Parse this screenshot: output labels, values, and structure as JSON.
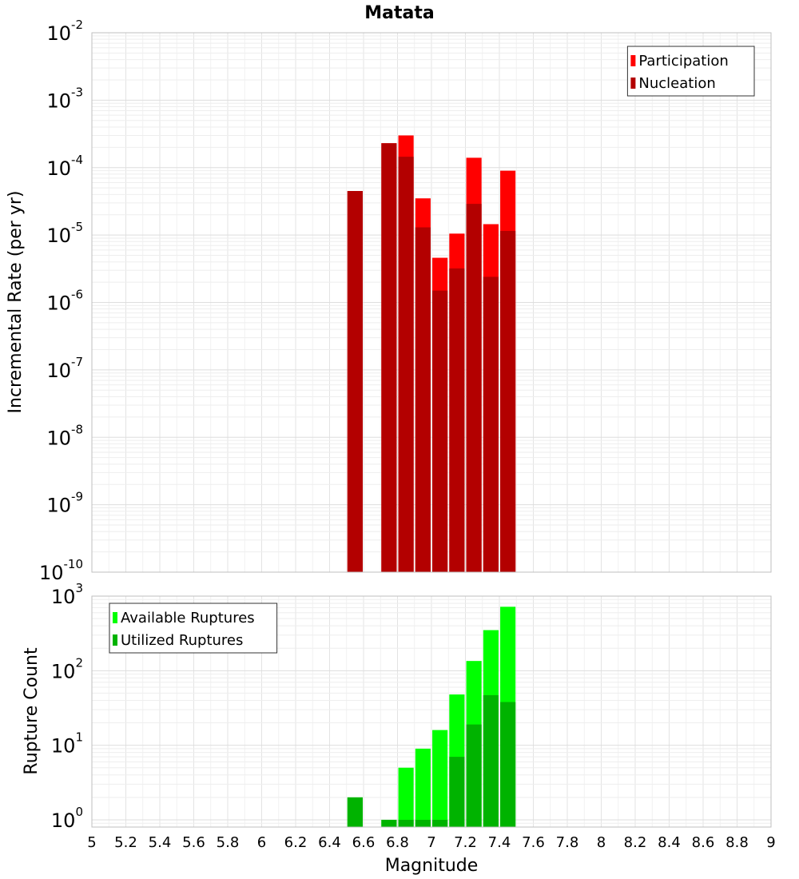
{
  "title": "Matata",
  "xlabel": "Magnitude",
  "x_ticks": [
    "5",
    "5.2",
    "5.4",
    "5.6",
    "5.8",
    "6",
    "6.2",
    "6.4",
    "6.6",
    "6.8",
    "7",
    "7.2",
    "7.4",
    "7.6",
    "7.8",
    "8",
    "8.2",
    "8.4",
    "8.6",
    "8.8",
    "9"
  ],
  "colors": {
    "participation": "#ff0000",
    "nucleation": "#b30000",
    "available": "#00ff00",
    "utilized": "#00b300",
    "grid": "#e6e6e6",
    "frame": "#bfbfbf"
  },
  "chart_data": [
    {
      "type": "bar",
      "ylabel": "Incremental Rate (per yr)",
      "log_scale": true,
      "xlim": [
        5,
        9
      ],
      "ylim": [
        1e-10,
        0.01
      ],
      "y_ticks": [
        {
          "base": "10",
          "exp": "-2",
          "value": 0.01
        },
        {
          "base": "10",
          "exp": "-3",
          "value": 0.001
        },
        {
          "base": "10",
          "exp": "-4",
          "value": 0.0001
        },
        {
          "base": "10",
          "exp": "-5",
          "value": 1e-05
        },
        {
          "base": "10",
          "exp": "-6",
          "value": 1e-06
        },
        {
          "base": "10",
          "exp": "-7",
          "value": 1e-07
        },
        {
          "base": "10",
          "exp": "-8",
          "value": 1e-08
        },
        {
          "base": "10",
          "exp": "-9",
          "value": 1e-09
        },
        {
          "base": "10",
          "exp": "-10",
          "value": 1e-10
        }
      ],
      "grid": true,
      "legend_position": "top-right",
      "x": [
        6.55,
        6.75,
        6.85,
        6.95,
        7.05,
        7.15,
        7.25,
        7.35,
        7.45
      ],
      "series": [
        {
          "name": "Participation",
          "color_key": "participation",
          "values": [
            4.5e-05,
            0.00023,
            0.0003,
            3.5e-05,
            4.6e-06,
            1.05e-05,
            0.00014,
            1.45e-05,
            9e-05
          ]
        },
        {
          "name": "Nucleation",
          "color_key": "nucleation",
          "values": [
            4.5e-05,
            0.00023,
            0.000145,
            1.3e-05,
            1.5e-06,
            3.2e-06,
            2.9e-05,
            2.4e-06,
            1.15e-05
          ]
        }
      ]
    },
    {
      "type": "bar",
      "ylabel": "Rupture Count",
      "log_scale": true,
      "xlim": [
        5,
        9
      ],
      "ylim": [
        0.8,
        1000
      ],
      "y_ticks": [
        {
          "base": "10",
          "exp": "3",
          "value": 1000
        },
        {
          "base": "10",
          "exp": "2",
          "value": 100
        },
        {
          "base": "10",
          "exp": "1",
          "value": 10
        },
        {
          "base": "10",
          "exp": "0",
          "value": 1
        }
      ],
      "grid": true,
      "legend_position": "top-left",
      "x": [
        6.55,
        6.75,
        6.85,
        6.95,
        7.05,
        7.15,
        7.25,
        7.35,
        7.45
      ],
      "series": [
        {
          "name": "Available Ruptures",
          "color_key": "available",
          "values": [
            2,
            1,
            5,
            9,
            16,
            48,
            135,
            350,
            720
          ]
        },
        {
          "name": "Utilized Ruptures",
          "color_key": "utilized",
          "values": [
            2,
            1,
            1,
            1,
            1,
            7,
            19,
            47,
            38
          ]
        }
      ]
    }
  ]
}
